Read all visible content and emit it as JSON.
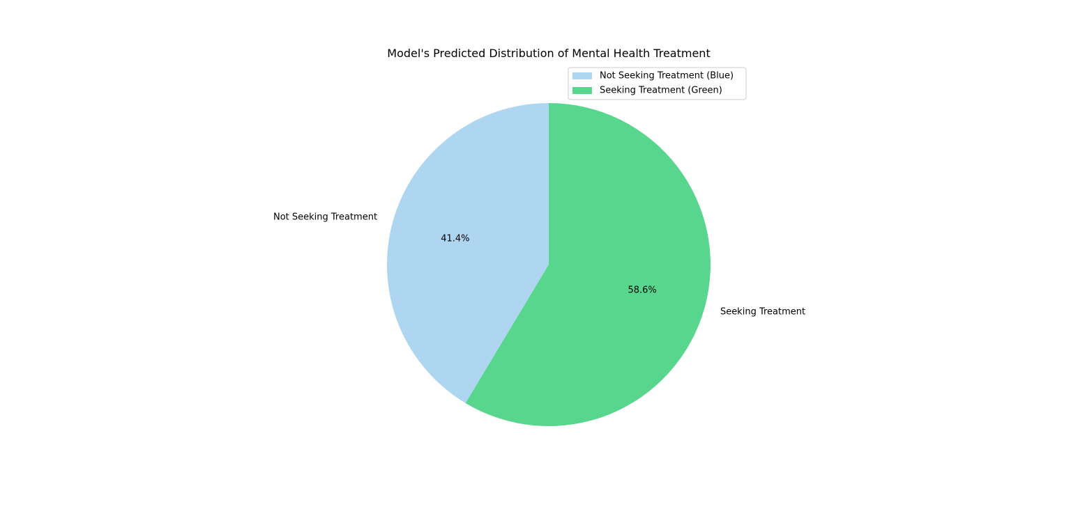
{
  "chart_data": {
    "type": "pie",
    "title": "Model's Predicted Distribution of Mental Health Treatment",
    "slices": [
      {
        "label": "Not Seeking Treatment",
        "value": 41.4,
        "pct_label": "41.4%",
        "color": "#aed6f1"
      },
      {
        "label": "Seeking Treatment",
        "value": 58.6,
        "pct_label": "58.6%",
        "color": "#58d68d"
      }
    ],
    "legend": {
      "placement": "upper-right",
      "entries": [
        {
          "label": "Not Seeking Treatment (Blue)",
          "color": "#aed6f1"
        },
        {
          "label": "Seeking Treatment (Green)",
          "color": "#58d68d"
        }
      ]
    },
    "start_angle": 90,
    "direction": "counterclockwise"
  }
}
